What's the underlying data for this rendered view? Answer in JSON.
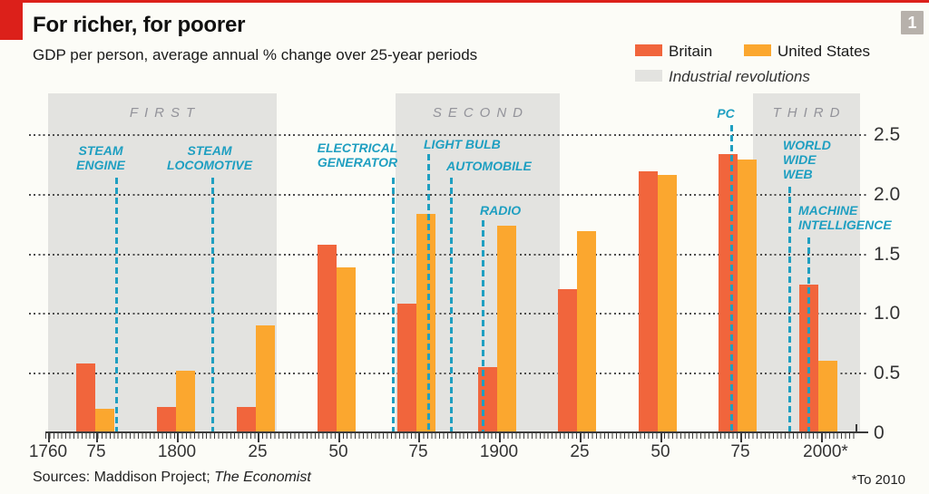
{
  "page": {
    "badge": "1",
    "accent_red": "#dc201a"
  },
  "header": {
    "title": "For richer, for poorer",
    "subtitle": "GDP per person, average annual % change over 25-year periods"
  },
  "legend": {
    "band_item": {
      "label": "Industrial revolutions",
      "color": "#e3e3e0"
    }
  },
  "footer": {
    "sources_prefix": "Sources: Maddison Project; ",
    "sources_italic": "The Economist",
    "footnote": "*To 2010"
  },
  "chart_data": {
    "type": "bar",
    "title": "For richer, for poorer",
    "subtitle": "GDP per person, average annual % change over 25-year periods",
    "categories": [
      "1760-85",
      "1785-1810",
      "1810-35",
      "1835-60",
      "1860-85",
      "1885-1910",
      "1910-35",
      "1935-60",
      "1960-85",
      "1985-2010"
    ],
    "series": [
      {
        "name": "Britain",
        "color": "#f1653c",
        "values": [
          0.58,
          0.21,
          0.21,
          1.57,
          1.08,
          0.55,
          1.2,
          2.19,
          2.33,
          1.24
        ]
      },
      {
        "name": "United States",
        "color": "#fba72f",
        "values": [
          0.2,
          0.52,
          0.9,
          1.38,
          1.83,
          1.73,
          1.69,
          2.16,
          2.29,
          0.6
        ]
      }
    ],
    "ylim": [
      0,
      2.5
    ],
    "yticks": [
      0,
      0.5,
      1.0,
      1.5,
      2.0,
      2.5
    ],
    "ytick_labels": [
      "0",
      "0.5",
      "1.0",
      "1.5",
      "2.0",
      "2.5"
    ],
    "ytick_side": "right",
    "xticks": [
      {
        "label": "1760",
        "year": 1760
      },
      {
        "label": "75",
        "year": 1775
      },
      {
        "label": "1800",
        "year": 1800
      },
      {
        "label": "25",
        "year": 1825
      },
      {
        "label": "50",
        "year": 1850
      },
      {
        "label": "75",
        "year": 1875
      },
      {
        "label": "1900",
        "year": 1900
      },
      {
        "label": "25",
        "year": 1925
      },
      {
        "label": "50",
        "year": 1950
      },
      {
        "label": "75",
        "year": 1975
      },
      {
        "label": "2000*",
        "year": 2000
      }
    ],
    "grid": "dotted horizontal",
    "legend_position": "top-right",
    "bands": [
      {
        "id": "first",
        "label": "FIRST",
        "start_year": 1760,
        "end_year": 1831
      },
      {
        "id": "second",
        "label": "SECOND",
        "start_year": 1868,
        "end_year": 1919
      },
      {
        "id": "third",
        "label": "THIRD",
        "start_year": 1979,
        "end_year": 2012
      }
    ],
    "annotations": [
      {
        "id": "steam-engine",
        "lines": [
          "STEAM",
          "ENGINE"
        ],
        "year": 1781
      },
      {
        "id": "steam-locomotive",
        "lines": [
          "STEAM",
          "LOCOMOTIVE"
        ],
        "year": 1811
      },
      {
        "id": "electrical-generator",
        "lines": [
          "ELECTRICAL",
          "GENERATOR"
        ],
        "year": 1867
      },
      {
        "id": "light-bulb",
        "lines": [
          "LIGHT BULB"
        ],
        "year": 1878
      },
      {
        "id": "automobile",
        "lines": [
          "AUTOMOBILE"
        ],
        "year": 1885
      },
      {
        "id": "radio",
        "lines": [
          "RADIO"
        ],
        "year": 1895
      },
      {
        "id": "pc",
        "lines": [
          "PC"
        ],
        "year": 1972
      },
      {
        "id": "world-wide-web",
        "lines": [
          "WORLD",
          "WIDE",
          "WEB"
        ],
        "year": 1990
      },
      {
        "id": "machine-intelligence",
        "lines": [
          "MACHINE",
          "INTELLIGENCE"
        ],
        "year": 1996
      }
    ]
  }
}
